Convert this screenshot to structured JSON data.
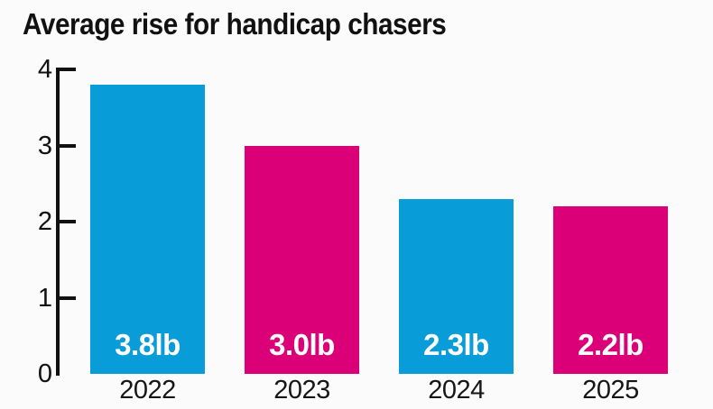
{
  "title": "Average rise for handicap chasers",
  "colors": {
    "blue": "#089CD8",
    "pink": "#DB0077",
    "axis": "#111111",
    "title_text": "#111111",
    "bar_label_text": "#FFFFFF",
    "background": "#FBFBFB"
  },
  "chart_data": {
    "type": "bar",
    "title": "Average rise for handicap chasers",
    "categories": [
      "2022",
      "2023",
      "2024",
      "2025"
    ],
    "values": [
      3.8,
      3.0,
      2.3,
      2.2
    ],
    "bar_labels": [
      "3.8lb",
      "3.0lb",
      "2.3lb",
      "2.2lb"
    ],
    "bar_colors": [
      "#089CD8",
      "#DB0077",
      "#089CD8",
      "#DB0077"
    ],
    "unit": "lb",
    "xlabel": "",
    "ylabel": "",
    "ylim": [
      0,
      4
    ],
    "yticks": [
      "0",
      "1",
      "2",
      "3",
      "4"
    ],
    "grid": false,
    "legend_position": "none"
  }
}
